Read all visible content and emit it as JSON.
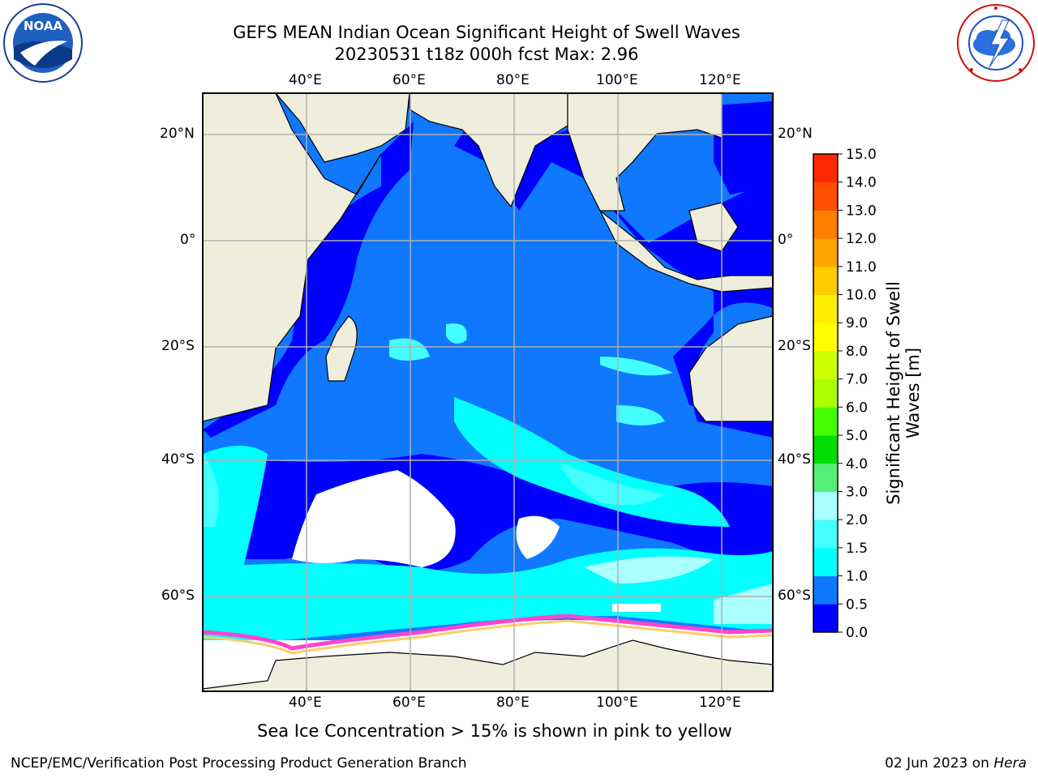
{
  "title": {
    "line1": "GEFS MEAN Indian Ocean Significant Height of Swell Waves",
    "line2": "20230531 t18z 000h fcst   Max: 2.96"
  },
  "logos": {
    "left": {
      "icon": "noaa-logo",
      "text": "NOAA",
      "ring_text": "NATIONAL OCEANIC AND ATMOSPHERIC ADMINISTRATION • U.S. DEPARTMENT OF COMMERCE"
    },
    "right": {
      "icon": "nws-logo",
      "ring_text": "NATIONAL WEATHER SERVICE"
    }
  },
  "map": {
    "lon_ticks": [
      "40°E",
      "60°E",
      "80°E",
      "100°E",
      "120°E"
    ],
    "lat_ticks": [
      "20°N",
      "0°",
      "20°S",
      "40°S",
      "60°S"
    ],
    "colors": {
      "land": "#efeedd",
      "grid": "#b0b0b0",
      "ice_missing": "#ffffff"
    }
  },
  "colorbar": {
    "label_line1": "Significant Height of Swell",
    "label_line2": "Waves [m]",
    "ticks": [
      "0.0",
      "0.5",
      "1.0",
      "1.5",
      "2.0",
      "3.0",
      "4.0",
      "5.0",
      "6.0",
      "7.0",
      "8.0",
      "9.0",
      "10.0",
      "11.0",
      "12.0",
      "13.0",
      "14.0",
      "15.0"
    ],
    "colors": [
      "#0000ff",
      "#0f78ff",
      "#00ffff",
      "#44ffff",
      "#aaffff",
      "#55ee77",
      "#00dd00",
      "#44ff00",
      "#aaff00",
      "#ccff00",
      "#ffff00",
      "#ffee00",
      "#ffcc00",
      "#ffa500",
      "#ff7f00",
      "#ff5000",
      "#ff2800"
    ]
  },
  "notes": {
    "sea_ice": "Sea Ice Concentration > 15% is shown in pink to yellow"
  },
  "footer": {
    "left": "NCEP/EMC/Verification Post Processing Product Generation Branch",
    "right_date": "02 Jun 2023 on ",
    "right_machine": "Hera"
  }
}
